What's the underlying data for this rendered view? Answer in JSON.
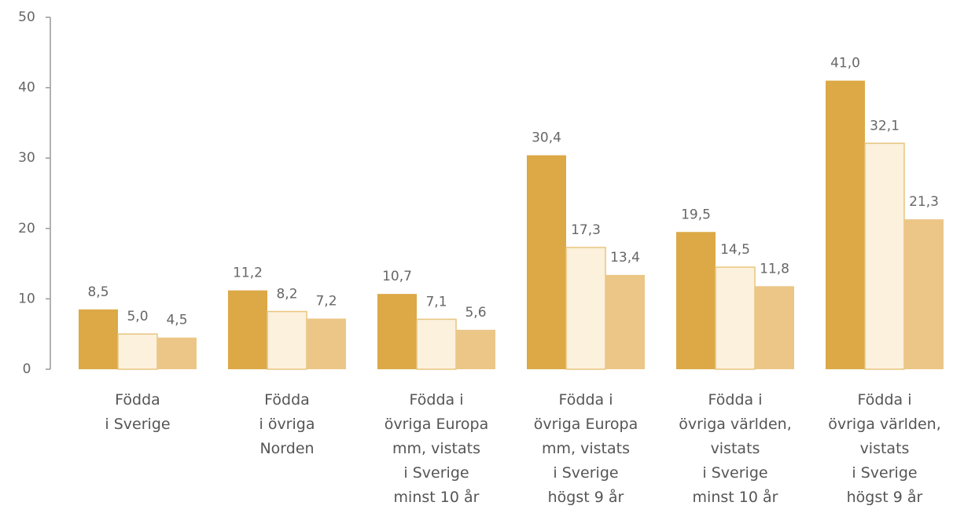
{
  "chart_data": {
    "type": "bar",
    "categories": [
      "Födda\ni Sverige",
      "Födda\ni övriga\nNorden",
      "Födda i\növriga Europa\nmm, vistats\ni Sverige\nminst 10 år",
      "Födda i\növriga Europa\nmm, vistats\ni Sverige\nhögst 9 år",
      "Födda i\növriga världen,\nvistats\ni Sverige\nminst 10 år",
      "Födda i\növriga världen,\nvistats\ni Sverige\nhögst 9 år"
    ],
    "series": [
      {
        "color": "#dca946",
        "values": [
          8.5,
          11.2,
          10.7,
          30.4,
          19.5,
          41.0
        ],
        "value_labels": [
          "8,5",
          "11,2",
          "10,7",
          "30,4",
          "19,5",
          "41,0"
        ]
      },
      {
        "color": "#fbf1dc",
        "values": [
          5.0,
          8.2,
          7.1,
          17.3,
          14.5,
          32.1
        ],
        "value_labels": [
          "5,0",
          "8,2",
          "7,1",
          "17,3",
          "14,5",
          "32,1"
        ]
      },
      {
        "color": "#ebc687",
        "values": [
          4.5,
          7.2,
          5.6,
          13.4,
          11.8,
          21.3
        ],
        "value_labels": [
          "4,5",
          "7,2",
          "5,6",
          "13,4",
          "11,8",
          "21,3"
        ]
      }
    ],
    "ylim": [
      0,
      50
    ],
    "yticks": [
      0,
      10,
      20,
      30,
      40,
      50
    ]
  }
}
